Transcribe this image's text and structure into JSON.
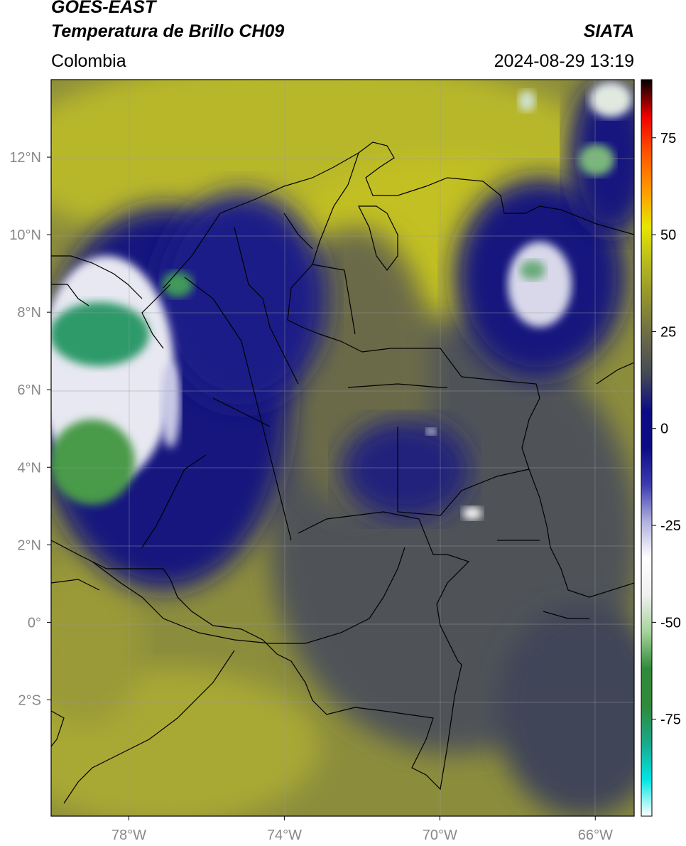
{
  "header": {
    "satellite": "GOES-EAST",
    "product": "Temperatura de Brillo CH09",
    "agency": "SIATA",
    "region": "Colombia",
    "datetime": "2024-08-29 13:19"
  },
  "map": {
    "lon_range": [
      -80,
      -65
    ],
    "lat_range": [
      -5,
      14
    ],
    "lon_ticks": [
      "78°W",
      "74°W",
      "70°W",
      "66°W"
    ],
    "lat_ticks": [
      "12°N",
      "10°N",
      "8°N",
      "6°N",
      "4°N",
      "2°N",
      "0°",
      "2°S"
    ]
  },
  "colorbar": {
    "range": [
      -100,
      90
    ],
    "ticks": [
      "75",
      "50",
      "25",
      "0",
      "-25",
      "-50",
      "-75"
    ],
    "colors": [
      "#ffffff",
      "#00e5e5",
      "#1aa88a",
      "#2f8a3a",
      "#2f8a3a",
      "#a6d39a",
      "#f0f0f0",
      "#ffffff",
      "#b0b0e0",
      "#3c3cb0",
      "#0b0b85",
      "#0b0b85",
      "#444a55",
      "#6a6a48",
      "#8f9030",
      "#b6b820",
      "#e6e600",
      "#ff9900",
      "#ff5500",
      "#ee0000",
      "#000000"
    ]
  }
}
